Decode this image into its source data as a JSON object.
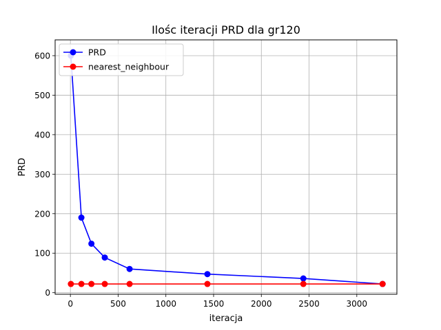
{
  "chart_data": {
    "type": "line",
    "title": "Ilośc iteracji PRD dla gr120",
    "xlabel": "iteracja",
    "ylabel": "PRD",
    "xlim": [
      -160,
      3420
    ],
    "ylim": [
      -4,
      640
    ],
    "xticks": [
      0,
      500,
      1000,
      1500,
      2000,
      2500,
      3000
    ],
    "yticks": [
      0,
      100,
      200,
      300,
      400,
      500,
      600
    ],
    "grid": true,
    "legend_position": "top-left",
    "series": [
      {
        "name": "PRD",
        "color": "#0000ff",
        "x": [
          5,
          115,
          220,
          360,
          620,
          1435,
          2440,
          3270
        ],
        "y": [
          600,
          190,
          124,
          89,
          60,
          47,
          36,
          22
        ]
      },
      {
        "name": "nearest_neighbour",
        "color": "#ff0000",
        "x": [
          5,
          115,
          220,
          360,
          620,
          1435,
          2440,
          3270
        ],
        "y": [
          22,
          22,
          22,
          22,
          22,
          22,
          22,
          22
        ]
      }
    ]
  }
}
